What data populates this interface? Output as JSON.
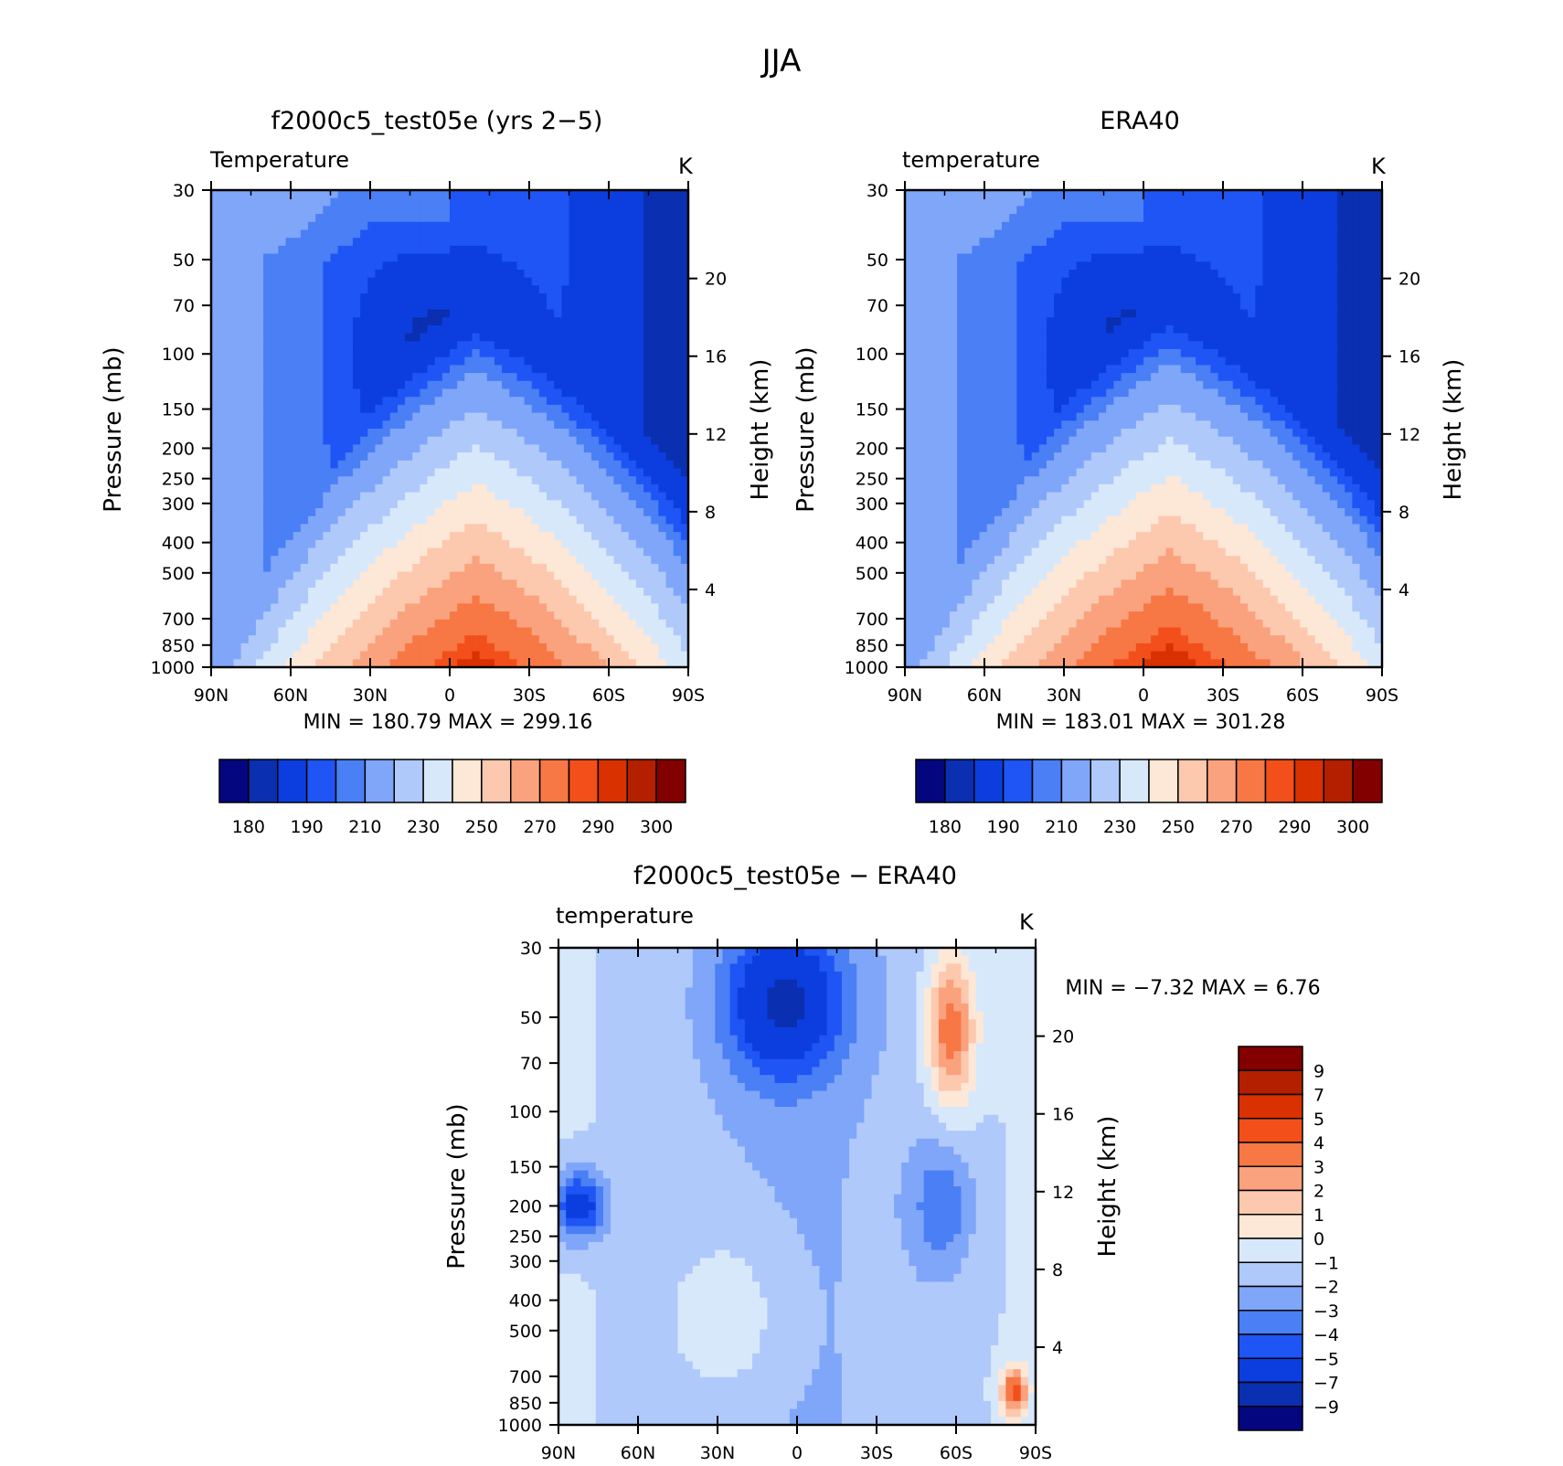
{
  "figure": {
    "title": "JJA"
  },
  "chart_data": [
    {
      "type": "heatmap",
      "title": "f2000c5_test05e (yrs 2−5)",
      "subtitle": "Temperature",
      "units": "K",
      "ylabel": "Pressure (mb)",
      "ylabel_right": "Height (km)",
      "x_tick_labels": [
        "90N",
        "60N",
        "30N",
        "0",
        "30S",
        "60S",
        "90S"
      ],
      "y_tick_labels": [
        "30",
        "50",
        "70",
        "100",
        "150",
        "200",
        "250",
        "300",
        "400",
        "500",
        "700",
        "850",
        "1000"
      ],
      "y_right_tick_labels": [
        "20",
        "16",
        "12",
        "8",
        "4"
      ],
      "stats_text": "MIN =  180.79   MAX =  299.16",
      "min": 180.79,
      "max": 299.16,
      "colorbar_levels": [
        180,
        190,
        210,
        230,
        250,
        270,
        290,
        300
      ],
      "colorbar_colors": [
        "#04067f",
        "#0a2fb0",
        "#0c3edf",
        "#1f55f5",
        "#4a7ff5",
        "#7fa6f9",
        "#b0c9fb",
        "#d8e8fb",
        "#fde7d6",
        "#fcc8ae",
        "#f9a27d",
        "#f77745",
        "#f24f1b",
        "#d93100",
        "#b41f00",
        "#820000"
      ],
      "band_edges_levels": [
        null,
        190,
        200,
        210,
        220,
        230,
        240,
        250,
        260,
        270,
        280,
        290,
        295,
        300
      ]
    },
    {
      "type": "heatmap",
      "title": "ERA40",
      "subtitle": "temperature",
      "units": "K",
      "ylabel": "Pressure (mb)",
      "ylabel_right": "Height (km)",
      "x_tick_labels": [
        "90N",
        "60N",
        "30N",
        "0",
        "30S",
        "60S",
        "90S"
      ],
      "y_tick_labels": [
        "30",
        "50",
        "70",
        "100",
        "150",
        "200",
        "250",
        "300",
        "400",
        "500",
        "700",
        "850",
        "1000"
      ],
      "y_right_tick_labels": [
        "20",
        "16",
        "12",
        "8",
        "4"
      ],
      "stats_text": "MIN =  183.01   MAX =  301.28",
      "min": 183.01,
      "max": 301.28,
      "colorbar_levels": [
        180,
        190,
        210,
        230,
        250,
        270,
        290,
        300
      ],
      "colorbar_colors": [
        "#04067f",
        "#0a2fb0",
        "#0c3edf",
        "#1f55f5",
        "#4a7ff5",
        "#7fa6f9",
        "#b0c9fb",
        "#d8e8fb",
        "#fde7d6",
        "#fcc8ae",
        "#f9a27d",
        "#f77745",
        "#f24f1b",
        "#d93100",
        "#b41f00",
        "#820000"
      ]
    },
    {
      "type": "heatmap",
      "title": "f2000c5_test05e − ERA40",
      "subtitle": "temperature",
      "units": "K",
      "ylabel": "Pressure (mb)",
      "ylabel_right": "Height (km)",
      "x_tick_labels": [
        "90N",
        "60N",
        "30N",
        "0",
        "30S",
        "60S",
        "90S"
      ],
      "y_tick_labels": [
        "30",
        "50",
        "70",
        "100",
        "150",
        "200",
        "250",
        "300",
        "400",
        "500",
        "700",
        "850",
        "1000"
      ],
      "y_right_tick_labels": [
        "20",
        "16",
        "12",
        "8",
        "4"
      ],
      "stats_text": "MIN =   −7.32   MAX =    6.76",
      "min": -7.32,
      "max": 6.76,
      "colorbar_levels": [
        "9",
        "7",
        "5",
        "4",
        "3",
        "2",
        "1",
        "0",
        "−1",
        "−2",
        "−3",
        "−4",
        "−5",
        "−7",
        "−9"
      ],
      "colorbar_colors": [
        "#820000",
        "#b41f00",
        "#d93100",
        "#f24f1b",
        "#f77745",
        "#f9a27d",
        "#fcc8ae",
        "#fde7d6",
        "#d8e8fb",
        "#b0c9fb",
        "#7fa6f9",
        "#4a7ff5",
        "#1f55f5",
        "#0c3edf",
        "#0a2fb0",
        "#04067f"
      ]
    }
  ]
}
